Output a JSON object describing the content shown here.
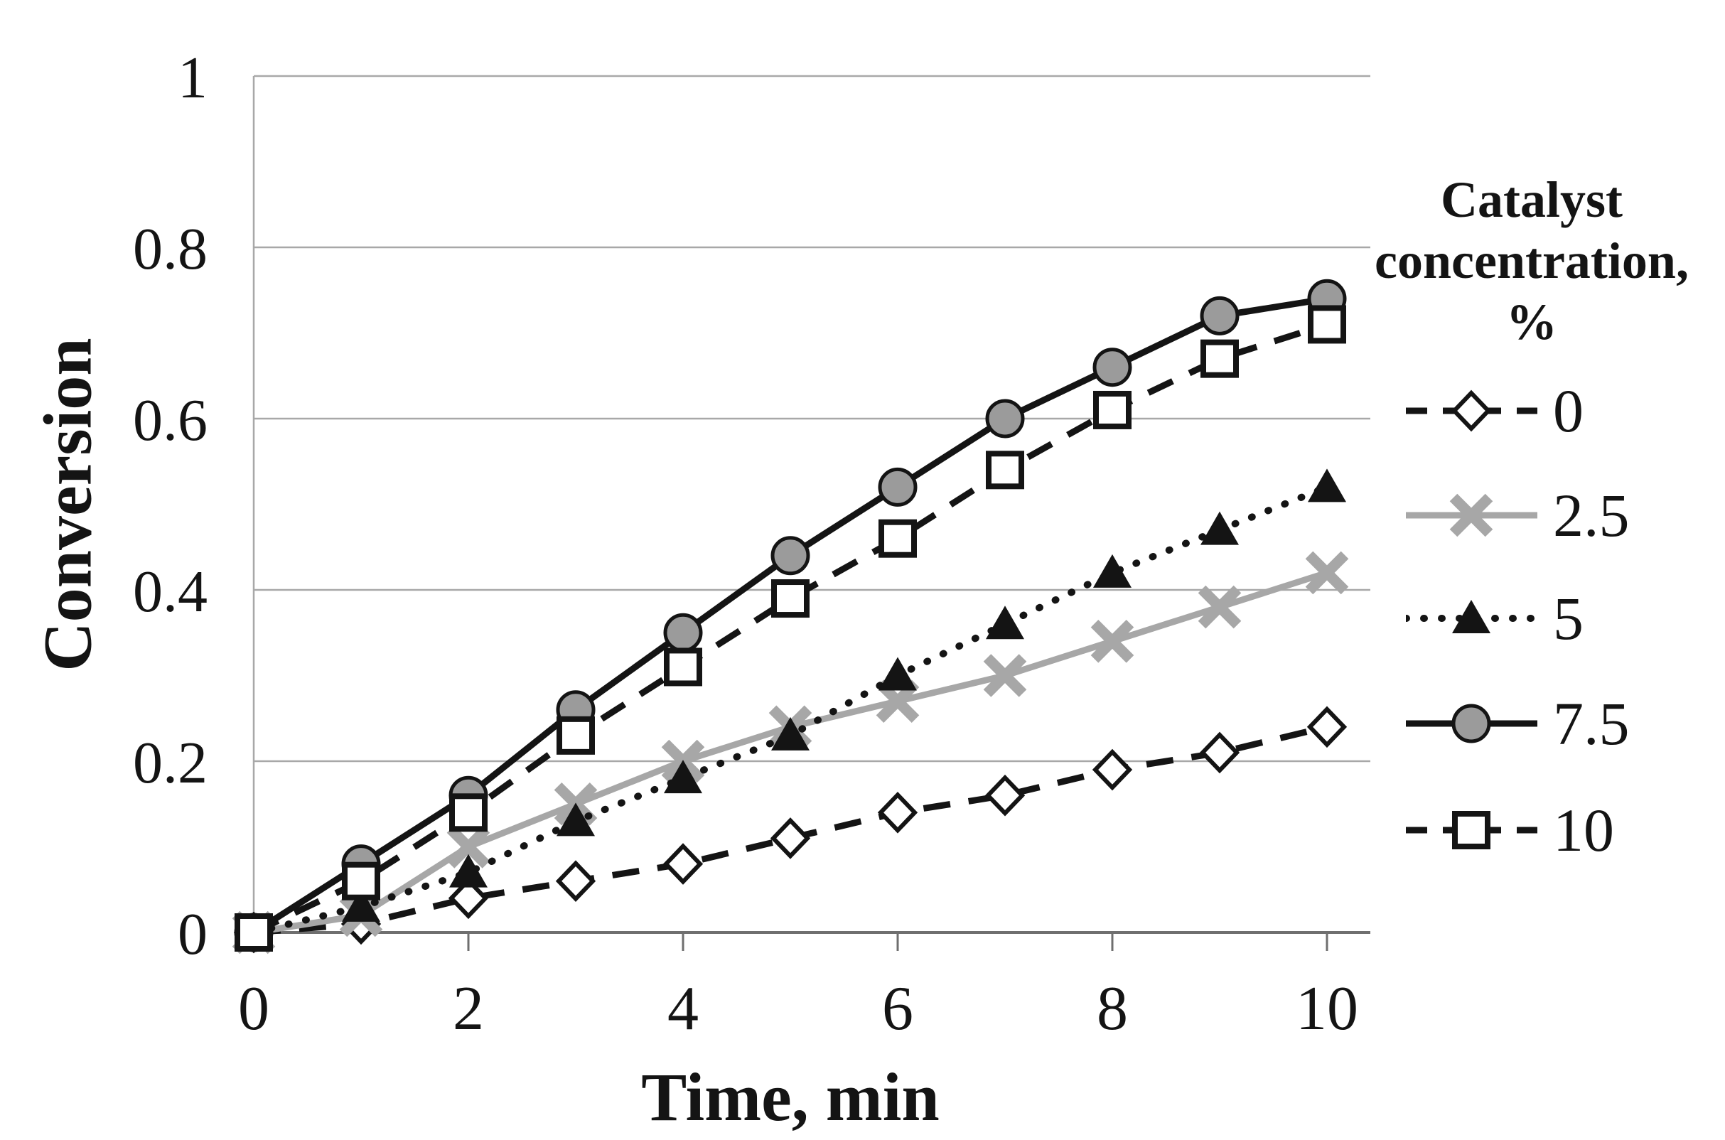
{
  "chart_data": {
    "type": "line",
    "title": "",
    "xlabel": "Time, min",
    "ylabel": "Conversion",
    "legend_title": "Catalyst concentration, %",
    "legend_position": "right",
    "grid": "horizontal",
    "xlim": [
      0,
      10
    ],
    "ylim": [
      0,
      1
    ],
    "x_ticks": [
      0,
      2,
      4,
      6,
      8,
      10
    ],
    "x_tick_labels": [
      "0",
      "2",
      "4",
      "6",
      "8",
      "10"
    ],
    "y_ticks": [
      0,
      0.2,
      0.4,
      0.6,
      0.8,
      1
    ],
    "y_tick_labels": [
      "0",
      "0.2",
      "0.4",
      "0.6",
      "0.8",
      "1"
    ],
    "x": [
      0,
      1,
      2,
      3,
      4,
      5,
      6,
      7,
      8,
      9,
      10
    ],
    "series": [
      {
        "name": "0",
        "legend_label": "0",
        "marker": "diamond-open",
        "line_style": "dashed",
        "color": "#141414",
        "values": [
          0,
          0.01,
          0.04,
          0.06,
          0.08,
          0.11,
          0.14,
          0.16,
          0.19,
          0.21,
          0.24
        ]
      },
      {
        "name": "2.5",
        "legend_label": "2.5",
        "marker": "x-cross",
        "line_style": "solid",
        "color": "#a7a7a7",
        "values": [
          0,
          0.02,
          0.1,
          0.15,
          0.2,
          0.24,
          0.27,
          0.3,
          0.34,
          0.38,
          0.42
        ]
      },
      {
        "name": "5",
        "legend_label": "5",
        "marker": "triangle-filled",
        "line_style": "dotted",
        "color": "#141414",
        "values": [
          0,
          0.03,
          0.07,
          0.13,
          0.18,
          0.23,
          0.3,
          0.36,
          0.42,
          0.47,
          0.52
        ]
      },
      {
        "name": "7.5",
        "legend_label": "7.5",
        "marker": "circle-filled",
        "line_style": "solid",
        "color": "#141414",
        "marker_fill": "#9b9b9b",
        "values": [
          0,
          0.08,
          0.16,
          0.26,
          0.35,
          0.44,
          0.52,
          0.6,
          0.66,
          0.72,
          0.74
        ]
      },
      {
        "name": "10",
        "legend_label": "10",
        "marker": "square-open",
        "line_style": "dashed",
        "color": "#141414",
        "values": [
          0,
          0.06,
          0.14,
          0.23,
          0.31,
          0.39,
          0.46,
          0.54,
          0.61,
          0.67,
          0.71
        ]
      }
    ]
  },
  "legend": {
    "title_lines": [
      "Catalyst",
      "concentration,",
      "%"
    ]
  }
}
